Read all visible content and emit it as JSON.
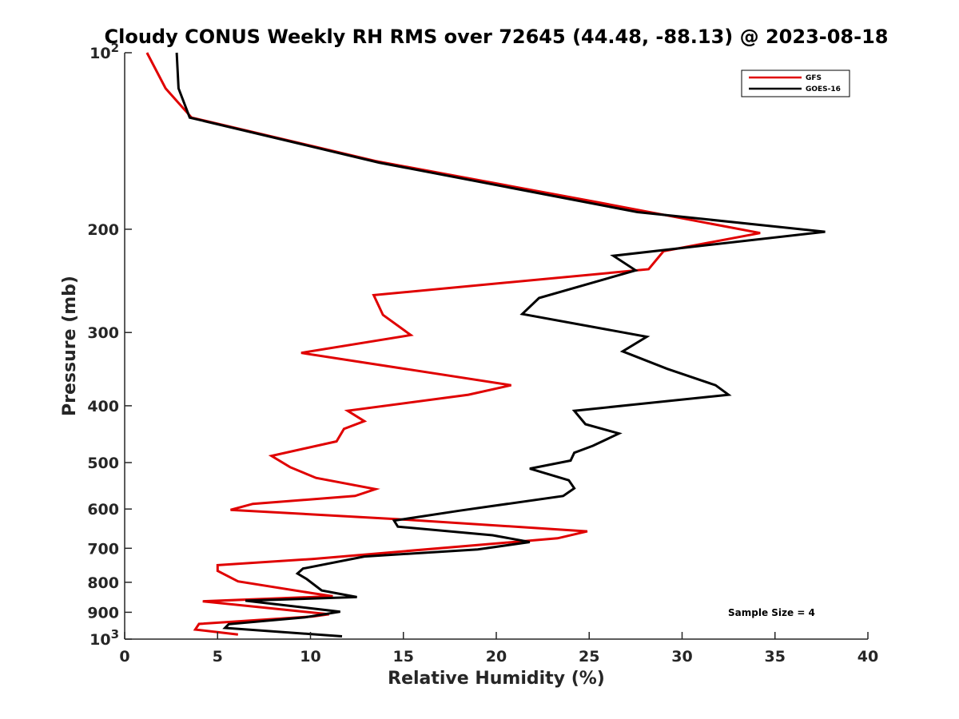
{
  "chart_data": {
    "type": "line",
    "title": "Cloudy CONUS Weekly RH RMS over 72645 (44.48, -88.13) @ 2023-08-18",
    "xlabel": "Relative Humidity (%)",
    "ylabel": "Pressure (mb)",
    "xlim": [
      0,
      40
    ],
    "ylim": [
      100,
      1000
    ],
    "yscale": "log",
    "y_reversed": true,
    "x_ticks": [
      "0",
      "5",
      "10",
      "15",
      "20",
      "25",
      "30",
      "35",
      "40"
    ],
    "y_ticks": [
      {
        "value": 100,
        "base": "10",
        "exp": "2"
      },
      {
        "value": 200,
        "label": "200"
      },
      {
        "value": 300,
        "label": "300"
      },
      {
        "value": 400,
        "label": "400"
      },
      {
        "value": 500,
        "label": "500"
      },
      {
        "value": 600,
        "label": "600"
      },
      {
        "value": 700,
        "label": "700"
      },
      {
        "value": 800,
        "label": "800"
      },
      {
        "value": 900,
        "label": "900"
      },
      {
        "value": 1000,
        "base": "10",
        "exp": "3"
      }
    ],
    "legend_position": "top-right",
    "grid": false,
    "annotation": "Sample Size = 4",
    "series": [
      {
        "name": "GFS",
        "color": "#e00000",
        "points": [
          [
            1.2,
            100
          ],
          [
            2.2,
            115
          ],
          [
            3.6,
            129
          ],
          [
            13.5,
            153
          ],
          [
            25.5,
            180
          ],
          [
            34.2,
            203
          ],
          [
            29.0,
            218
          ],
          [
            28.2,
            234
          ],
          [
            13.4,
            259
          ],
          [
            13.9,
            280
          ],
          [
            15.4,
            303
          ],
          [
            9.5,
            325
          ],
          [
            20.8,
            369
          ],
          [
            18.5,
            383
          ],
          [
            12.0,
            408
          ],
          [
            12.9,
            425
          ],
          [
            11.8,
            438
          ],
          [
            11.4,
            460
          ],
          [
            7.9,
            487
          ],
          [
            8.9,
            509
          ],
          [
            10.3,
            531
          ],
          [
            13.5,
            555
          ],
          [
            12.4,
            570
          ],
          [
            6.9,
            588
          ],
          [
            5.7,
            602
          ],
          [
            14.6,
            624
          ],
          [
            24.9,
            655
          ],
          [
            23.3,
            673
          ],
          [
            10.1,
            730
          ],
          [
            5.0,
            748
          ],
          [
            5.0,
            765
          ],
          [
            6.1,
            797
          ],
          [
            10.1,
            835
          ],
          [
            11.2,
            845
          ],
          [
            4.2,
            862
          ],
          [
            11.0,
            907
          ],
          [
            10.1,
            915
          ],
          [
            4.0,
            942
          ],
          [
            3.8,
            963
          ],
          [
            6.1,
            982
          ]
        ]
      },
      {
        "name": "GOES-16",
        "color": "#000000",
        "points": [
          [
            2.8,
            100
          ],
          [
            2.9,
            115
          ],
          [
            3.5,
            129
          ],
          [
            13.7,
            154
          ],
          [
            27.6,
            187
          ],
          [
            37.7,
            202
          ],
          [
            26.3,
            222
          ],
          [
            27.5,
            235
          ],
          [
            22.3,
            262
          ],
          [
            21.4,
            279
          ],
          [
            28.1,
            305
          ],
          [
            26.8,
            323
          ],
          [
            29.2,
            346
          ],
          [
            31.8,
            369
          ],
          [
            32.5,
            383
          ],
          [
            24.2,
            408
          ],
          [
            24.8,
            430
          ],
          [
            26.6,
            446
          ],
          [
            25.2,
            468
          ],
          [
            24.2,
            481
          ],
          [
            24.0,
            496
          ],
          [
            21.8,
            512
          ],
          [
            23.9,
            536
          ],
          [
            24.2,
            553
          ],
          [
            23.6,
            570
          ],
          [
            18.0,
            604
          ],
          [
            14.5,
            628
          ],
          [
            14.7,
            643
          ],
          [
            19.8,
            665
          ],
          [
            21.8,
            683
          ],
          [
            19.0,
            703
          ],
          [
            12.9,
            723
          ],
          [
            9.6,
            758
          ],
          [
            9.3,
            773
          ],
          [
            9.8,
            790
          ],
          [
            10.6,
            826
          ],
          [
            12.5,
            848
          ],
          [
            6.5,
            860
          ],
          [
            11.6,
            898
          ],
          [
            9.7,
            918
          ],
          [
            5.6,
            943
          ],
          [
            5.4,
            957
          ],
          [
            11.7,
            989
          ]
        ]
      }
    ]
  }
}
